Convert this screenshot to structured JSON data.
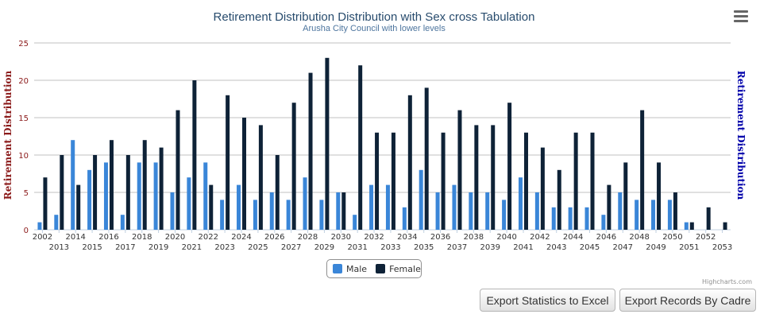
{
  "chart_data": {
    "type": "bar",
    "title": "Retirement Distribution Distribution with Sex cross Tabulation",
    "subtitle": "Arusha City Council with lower levels",
    "ylabel_left": "Retirement Distribution",
    "ylabel_right": "Retirement Distribution",
    "ylim": [
      0,
      25
    ],
    "yticks": [
      0,
      5,
      10,
      15,
      20,
      25
    ],
    "grid": true,
    "legend_position": "bottom-center",
    "categories": [
      "2002",
      "2013",
      "2014",
      "2015",
      "2016",
      "2017",
      "2018",
      "2019",
      "2020",
      "2021",
      "2022",
      "2023",
      "2024",
      "2025",
      "2026",
      "2027",
      "2028",
      "2029",
      "2030",
      "2031",
      "2032",
      "2033",
      "2034",
      "2035",
      "2036",
      "2037",
      "2038",
      "2039",
      "2040",
      "2041",
      "2042",
      "2043",
      "2044",
      "2045",
      "2046",
      "2047",
      "2048",
      "2049",
      "2050",
      "2051",
      "2052",
      "2053"
    ],
    "series": [
      {
        "name": "Male",
        "color": "#3a86d8",
        "values": [
          1,
          2,
          12,
          8,
          9,
          2,
          9,
          9,
          5,
          7,
          9,
          4,
          6,
          4,
          5,
          4,
          7,
          4,
          5,
          2,
          6,
          6,
          3,
          8,
          5,
          6,
          5,
          5,
          4,
          7,
          5,
          3,
          3,
          3,
          2,
          5,
          4,
          4,
          4,
          1,
          0,
          0
        ]
      },
      {
        "name": "Female",
        "color": "#0e2237",
        "values": [
          7,
          10,
          6,
          10,
          12,
          10,
          12,
          11,
          16,
          20,
          6,
          18,
          15,
          14,
          10,
          17,
          21,
          23,
          5,
          22,
          13,
          13,
          18,
          19,
          13,
          16,
          14,
          14,
          17,
          13,
          11,
          8,
          13,
          13,
          6,
          9,
          16,
          9,
          5,
          1,
          3,
          1
        ]
      }
    ]
  },
  "colors": {
    "title": "#274b6d",
    "subtitle": "#4d759e",
    "left_axis_title": "#8b1a1a",
    "right_axis_title": "#0000aa",
    "grid": "#c0c0c0"
  },
  "credits": "Highcharts.com",
  "menu_icon": "hamburger-menu-icon",
  "buttons": {
    "export_statistics": "Export Statistics to Excel",
    "export_records": "Export Records By Cadre"
  }
}
